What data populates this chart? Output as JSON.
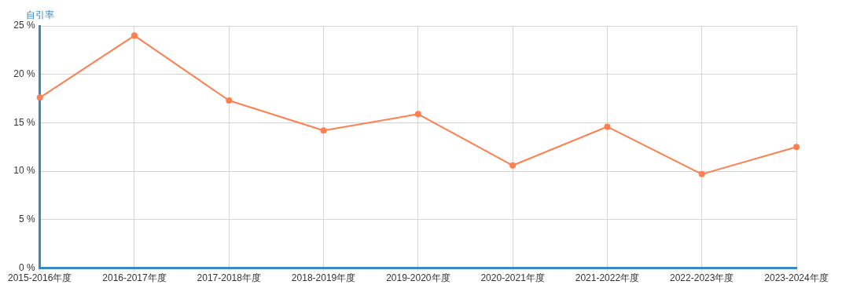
{
  "chart_data": {
    "type": "line",
    "ylabel": "自引率",
    "categories": [
      "2015-2016年度",
      "2016-2017年度",
      "2017-2018年度",
      "2018-2019年度",
      "2019-2020年度",
      "2020-2021年度",
      "2021-2022年度",
      "2022-2023年度",
      "2023-2024年度"
    ],
    "series": [
      {
        "color": "#ff7f50",
        "values": [
          17.6,
          24.0,
          17.3,
          14.2,
          15.9,
          10.6,
          14.6,
          9.7,
          12.5
        ]
      }
    ],
    "ylim": [
      0,
      25
    ],
    "yticks": [
      {
        "value": 0,
        "label": "0 %"
      },
      {
        "value": 5,
        "label": "5 %"
      },
      {
        "value": 10,
        "label": "10 %"
      },
      {
        "value": 15,
        "label": "15 %"
      },
      {
        "value": 20,
        "label": "20 %"
      },
      {
        "value": 25,
        "label": "25 %"
      }
    ],
    "grid": true,
    "marker": "circle",
    "line_style": "solid",
    "legend": false
  }
}
